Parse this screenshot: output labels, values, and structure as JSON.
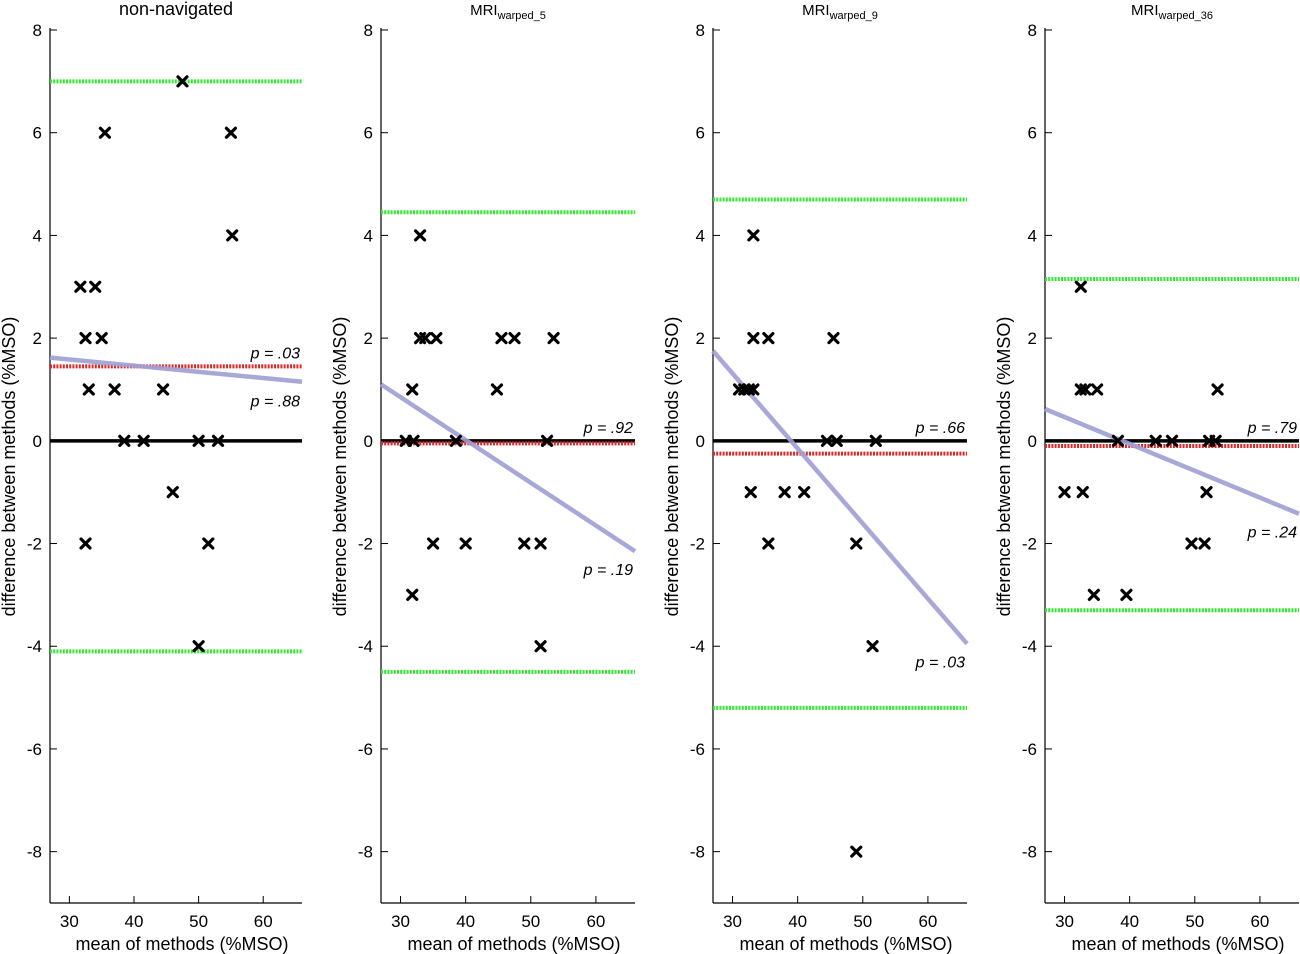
{
  "chart_data": [
    {
      "type": "scatter",
      "title": "non-navigated",
      "title_main": "non-navigated",
      "title_sub": "",
      "xlabel": "mean of methods (%MSO)",
      "ylabel": "difference between methods (%MSO)",
      "xlim": [
        27,
        66
      ],
      "ylim": [
        -9,
        8
      ],
      "xticks": [
        30,
        40,
        50,
        60
      ],
      "yticks": [
        8,
        6,
        4,
        2,
        0,
        -2,
        -4,
        -6,
        -8
      ],
      "ytick_labels": [
        "8",
        "6",
        "4",
        "2",
        "0",
        "-2",
        "-4",
        "-6",
        "-8"
      ],
      "points": [
        [
          47.5,
          7
        ],
        [
          35.5,
          6
        ],
        [
          55,
          6
        ],
        [
          55.2,
          4
        ],
        [
          31.7,
          3
        ],
        [
          34,
          3
        ],
        [
          32.5,
          2
        ],
        [
          35,
          2
        ],
        [
          33,
          1
        ],
        [
          37,
          1
        ],
        [
          44.5,
          1
        ],
        [
          38.5,
          0
        ],
        [
          41.5,
          0
        ],
        [
          50,
          0
        ],
        [
          53,
          0
        ],
        [
          46,
          -1
        ],
        [
          32.5,
          -2
        ],
        [
          51.5,
          -2
        ],
        [
          50,
          -4
        ]
      ],
      "upper_loa": 7.0,
      "lower_loa": -4.1,
      "mean_diff": 1.45,
      "regression": [
        [
          27,
          1.62
        ],
        [
          66,
          1.15
        ]
      ],
      "p_mean": "p = .03",
      "p_slope": "p = .88"
    },
    {
      "type": "scatter",
      "title": "MRI warped_5",
      "title_main": "MRI",
      "title_sub": "warped_5",
      "xlabel": "mean of methods (%MSO)",
      "ylabel": "difference between methods (%MSO)",
      "xlim": [
        27,
        66
      ],
      "ylim": [
        -9,
        8
      ],
      "xticks": [
        30,
        40,
        50,
        60
      ],
      "yticks": [
        8,
        6,
        4,
        2,
        0,
        -2,
        -4,
        -6,
        -8
      ],
      "ytick_labels": [
        "8",
        "6",
        "4",
        "2",
        "0",
        "-2",
        "-4",
        "-6",
        "-8"
      ],
      "points": [
        [
          33,
          4
        ],
        [
          33,
          2
        ],
        [
          33.8,
          2
        ],
        [
          35.5,
          2
        ],
        [
          45.5,
          2
        ],
        [
          47.5,
          2
        ],
        [
          53.5,
          2
        ],
        [
          31.8,
          1
        ],
        [
          44.8,
          1
        ],
        [
          30.8,
          0
        ],
        [
          32,
          0
        ],
        [
          38.5,
          0
        ],
        [
          52.5,
          0
        ],
        [
          35,
          -2
        ],
        [
          40,
          -2
        ],
        [
          49,
          -2
        ],
        [
          51.5,
          -2
        ],
        [
          31.8,
          -3
        ],
        [
          51.5,
          -4
        ]
      ],
      "upper_loa": 4.45,
      "lower_loa": -4.5,
      "mean_diff": -0.05,
      "regression": [
        [
          27,
          1.1
        ],
        [
          66,
          -2.15
        ]
      ],
      "p_mean": "p = .92",
      "p_slope": "p = .19"
    },
    {
      "type": "scatter",
      "title": "MRI warped_9",
      "title_main": "MRI",
      "title_sub": "warped_9",
      "xlabel": "mean of methods (%MSO)",
      "ylabel": "difference between methods (%MSO)",
      "xlim": [
        27,
        66
      ],
      "ylim": [
        -9,
        8
      ],
      "xticks": [
        30,
        40,
        50,
        60
      ],
      "yticks": [
        8,
        6,
        4,
        2,
        0,
        -2,
        -4,
        -6,
        -8
      ],
      "ytick_labels": [
        "8",
        "6",
        "4",
        "2",
        "0",
        "-2",
        "-4",
        "-6",
        "-8"
      ],
      "points": [
        [
          33.2,
          4
        ],
        [
          33.2,
          2
        ],
        [
          35.5,
          2
        ],
        [
          45.5,
          2
        ],
        [
          31,
          1
        ],
        [
          31.8,
          1
        ],
        [
          32.5,
          1
        ],
        [
          33.2,
          1
        ],
        [
          44.5,
          0
        ],
        [
          46,
          0
        ],
        [
          52,
          0
        ],
        [
          32.8,
          -1
        ],
        [
          38,
          -1
        ],
        [
          41,
          -1
        ],
        [
          35.5,
          -2
        ],
        [
          49,
          -2
        ],
        [
          51.5,
          -4
        ],
        [
          49,
          -8
        ]
      ],
      "upper_loa": 4.7,
      "lower_loa": -5.2,
      "mean_diff": -0.25,
      "regression": [
        [
          27,
          1.75
        ],
        [
          66,
          -3.95
        ]
      ],
      "p_mean": "p = .66",
      "p_slope": "p = .03"
    },
    {
      "type": "scatter",
      "title": "MRI warped_36",
      "title_main": "MRI",
      "title_sub": "warped_36",
      "xlabel": "mean of methods (%MSO)",
      "ylabel": "difference between methods (%MSO)",
      "xlim": [
        27,
        66
      ],
      "ylim": [
        -9,
        8
      ],
      "xticks": [
        30,
        40,
        50,
        60
      ],
      "yticks": [
        8,
        6,
        4,
        2,
        0,
        -2,
        -4,
        -6,
        -8
      ],
      "ytick_labels": [
        "8",
        "6",
        "4",
        "2",
        "0",
        "-2",
        "-4",
        "-6",
        "-8"
      ],
      "points": [
        [
          32.5,
          3
        ],
        [
          32.5,
          1
        ],
        [
          33.2,
          1
        ],
        [
          35,
          1
        ],
        [
          53.5,
          1
        ],
        [
          38.2,
          0
        ],
        [
          44,
          0
        ],
        [
          46.5,
          0
        ],
        [
          52.2,
          0
        ],
        [
          53.2,
          0
        ],
        [
          30,
          -1
        ],
        [
          32.8,
          -1
        ],
        [
          51.8,
          -1
        ],
        [
          49.5,
          -2
        ],
        [
          51.5,
          -2
        ],
        [
          34.5,
          -3
        ],
        [
          39.5,
          -3
        ]
      ],
      "upper_loa": 3.15,
      "lower_loa": -3.3,
      "mean_diff": -0.1,
      "regression": [
        [
          27,
          0.62
        ],
        [
          66,
          -1.42
        ]
      ],
      "p_mean": "p = .79",
      "p_slope": "p = .24"
    }
  ],
  "colors": {
    "zero_line": "#000000",
    "loa_line": "#33e833",
    "mean_line": "#e02828",
    "regression_line": "#9f9fd4",
    "marker": "#000000"
  }
}
